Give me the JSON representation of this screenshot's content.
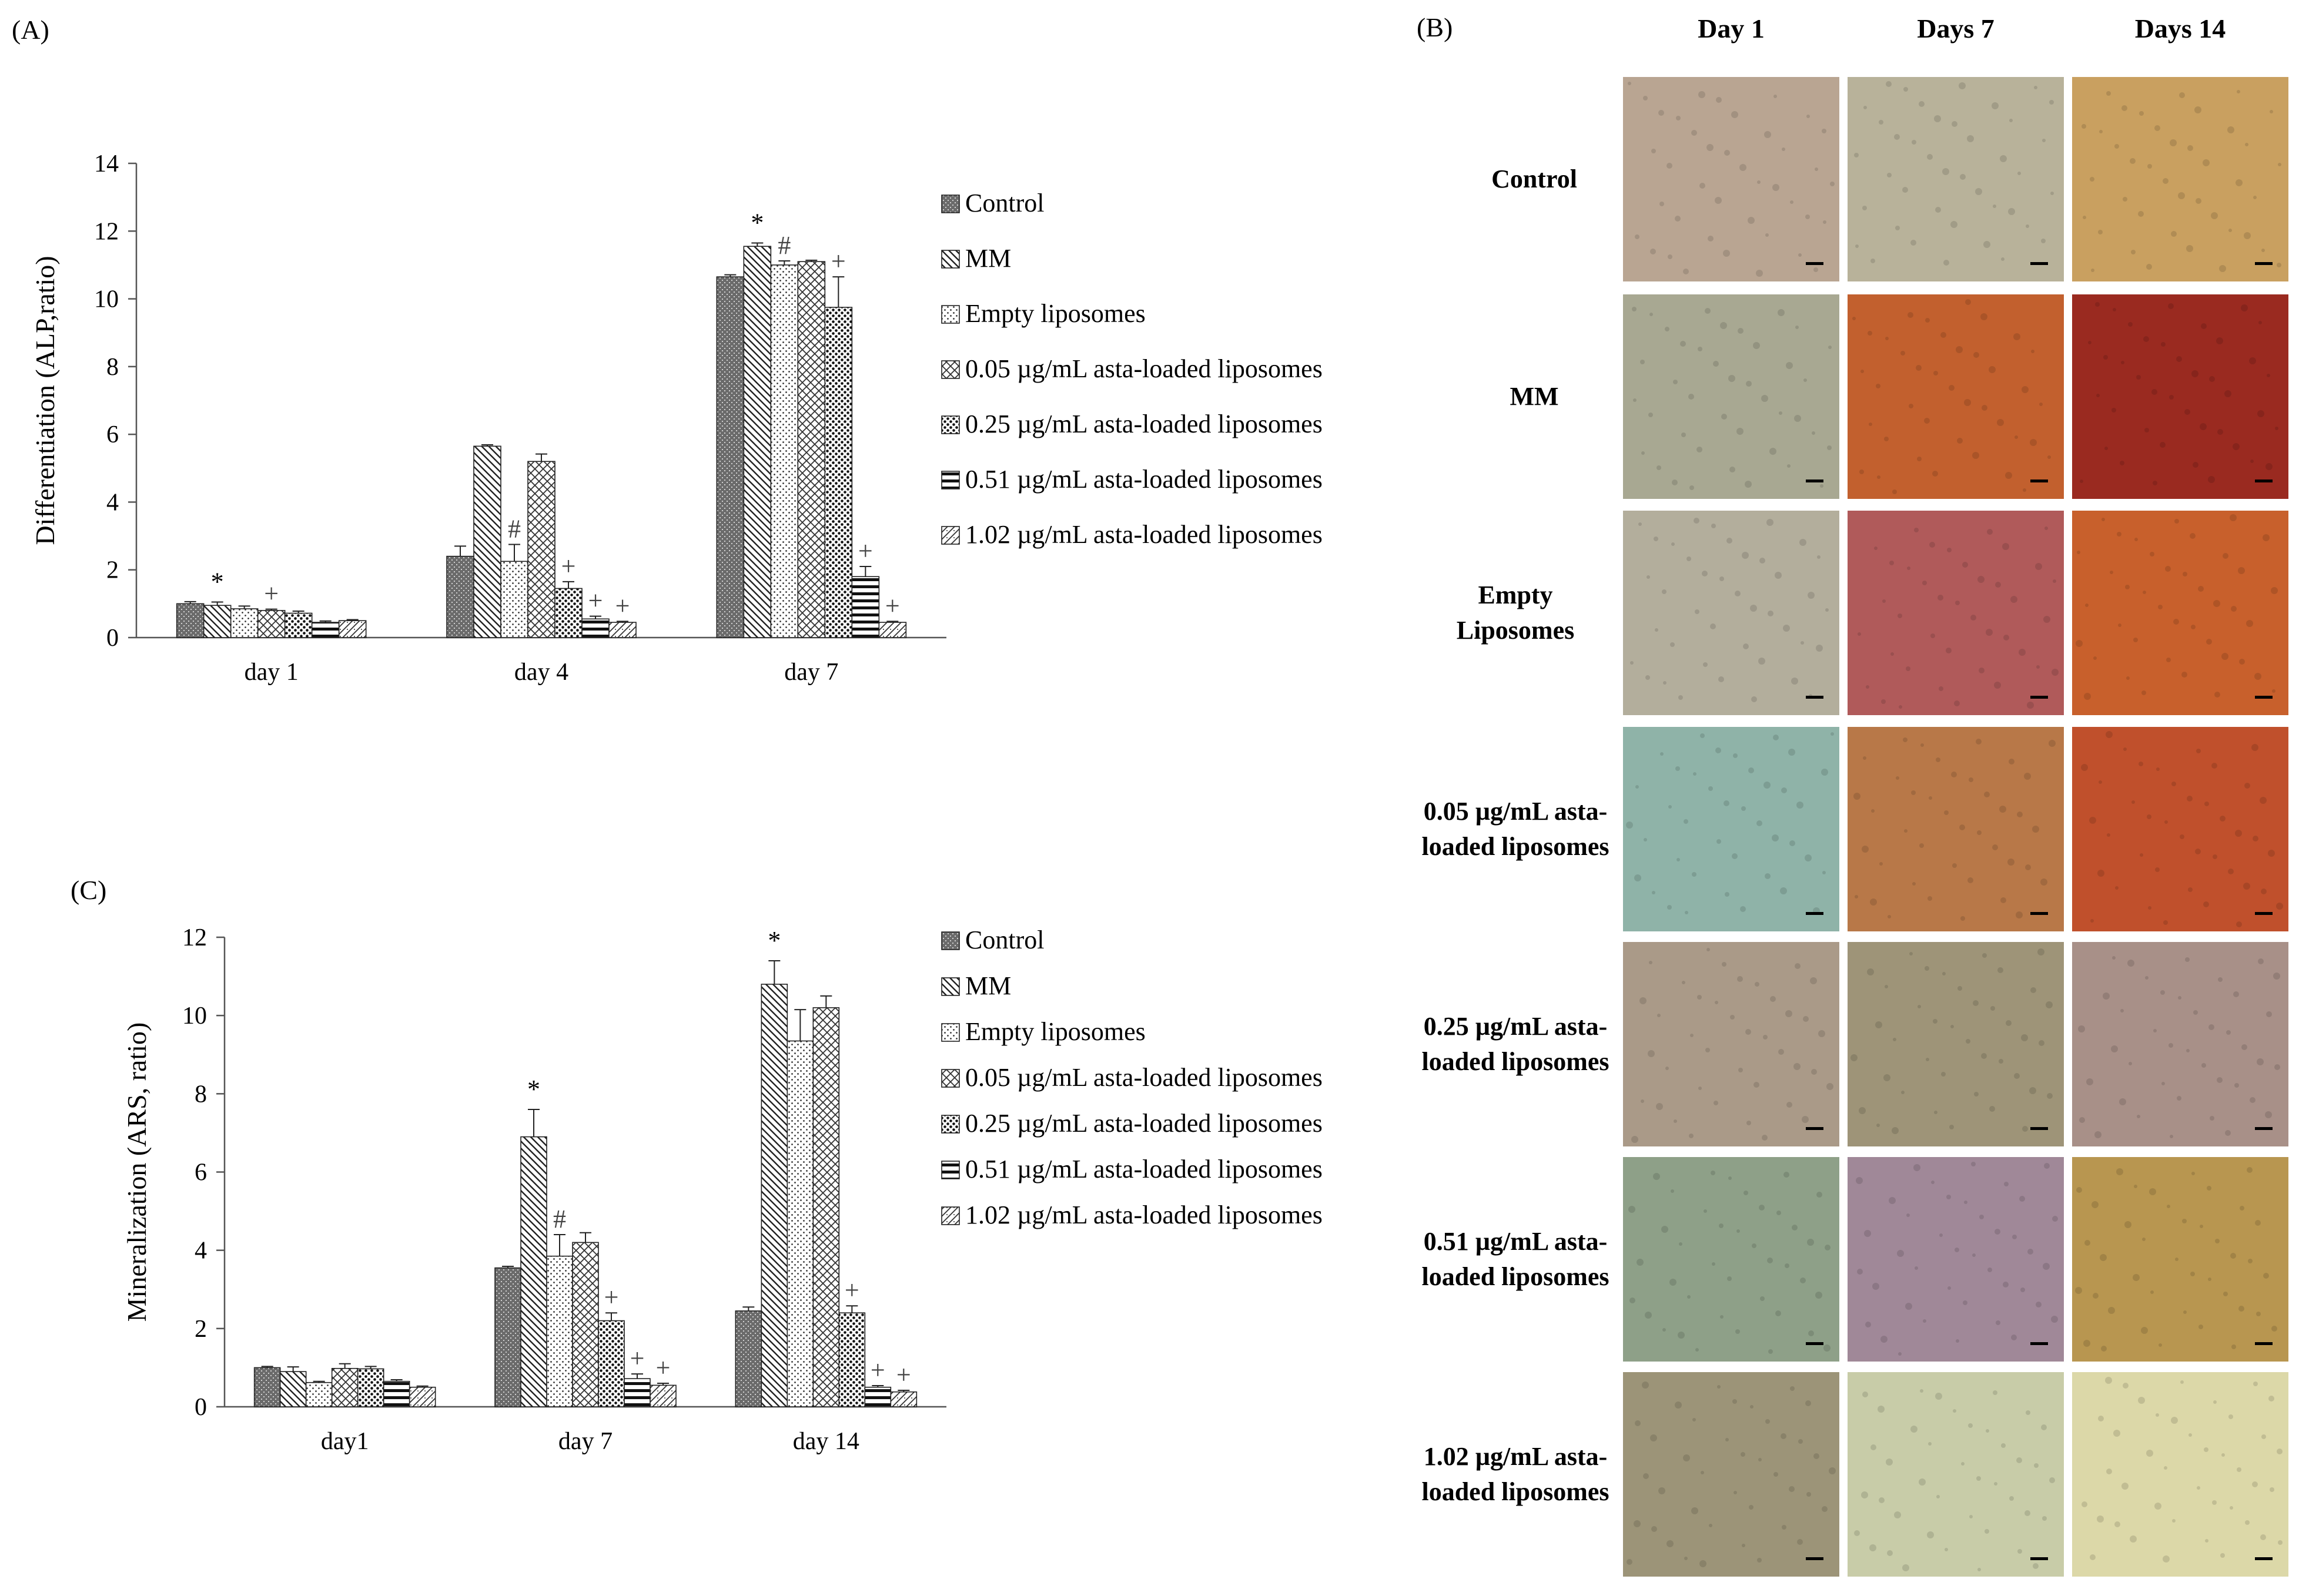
{
  "panels": {
    "A": "(A)",
    "B": "(B)",
    "C": "(C)"
  },
  "legend_labels": [
    "Control",
    "MM",
    "Empty liposomes",
    "0.05 µg/mL asta-loaded liposomes",
    "0.25  µg/mL asta-loaded liposomes",
    "0.51  µg/mL asta-loaded liposomes",
    "1.02  µg/mL asta-loaded liposomes"
  ],
  "legend_labels_c": [
    "Control",
    "MM",
    "Empty liposomes",
    "0.05 µg/mL asta-loaded liposomes",
    "0.25 µg/mL asta-loaded liposomes",
    "0.51 µg/mL asta-loaded liposomes",
    "1.02 µg/mL asta-loaded liposomes"
  ],
  "chart_data": [
    {
      "panel": "A",
      "type": "bar",
      "ylabel": "Differentiation (ALP,ratio)",
      "xlabel": "",
      "ylim": [
        0,
        14
      ],
      "yticks": [
        0,
        2,
        4,
        6,
        8,
        10,
        12,
        14
      ],
      "categories": [
        "day 1",
        "day 4",
        "day 7"
      ],
      "series": [
        {
          "name": "Control",
          "values": [
            1.0,
            2.4,
            10.65
          ],
          "errors": [
            0.06,
            0.3,
            0.06
          ]
        },
        {
          "name": "MM",
          "values": [
            0.95,
            5.65,
            11.55
          ],
          "errors": [
            0.1,
            0.04,
            0.1
          ]
        },
        {
          "name": "Empty liposomes",
          "values": [
            0.85,
            2.25,
            11.0
          ],
          "errors": [
            0.08,
            0.5,
            0.12
          ]
        },
        {
          "name": "0.05 µg/mL asta-loaded liposomes",
          "values": [
            0.8,
            5.2,
            11.1
          ],
          "errors": [
            0.04,
            0.22,
            0.04
          ]
        },
        {
          "name": "0.25  µg/mL asta-loaded liposomes",
          "values": [
            0.72,
            1.45,
            9.75
          ],
          "errors": [
            0.06,
            0.2,
            0.9
          ]
        },
        {
          "name": "0.51  µg/mL asta-loaded liposomes",
          "values": [
            0.45,
            0.55,
            1.8
          ],
          "errors": [
            0.04,
            0.08,
            0.3
          ]
        },
        {
          "name": "1.02  µg/mL asta-loaded liposomes",
          "values": [
            0.5,
            0.45,
            0.45
          ],
          "errors": [
            0.03,
            0.03,
            0.03
          ]
        }
      ],
      "markers": [
        [
          null,
          "*",
          null,
          "+",
          null,
          null,
          null
        ],
        [
          null,
          null,
          "#",
          null,
          "+",
          "+",
          "+"
        ],
        [
          null,
          "*",
          "#",
          null,
          "+",
          "+",
          "+"
        ]
      ],
      "markers_note": "",
      "legend": "right"
    },
    {
      "panel": "C",
      "type": "bar",
      "ylabel": "Mineralization (ARS, ratio)",
      "xlabel": "",
      "ylim": [
        0,
        12
      ],
      "yticks": [
        0,
        2,
        4,
        6,
        8,
        10,
        12
      ],
      "categories": [
        "day1",
        "day 7",
        "day 14"
      ],
      "series": [
        {
          "name": "Control",
          "values": [
            1.0,
            3.55,
            2.45
          ],
          "errors": [
            0.03,
            0.04,
            0.1
          ]
        },
        {
          "name": "MM",
          "values": [
            0.9,
            6.9,
            10.8
          ],
          "errors": [
            0.12,
            0.7,
            0.6
          ]
        },
        {
          "name": "Empty liposomes",
          "values": [
            0.62,
            3.85,
            9.35
          ],
          "errors": [
            0.03,
            0.55,
            0.8
          ]
        },
        {
          "name": "0.05 µg/mL asta-loaded liposomes",
          "values": [
            0.98,
            4.2,
            10.2
          ],
          "errors": [
            0.12,
            0.25,
            0.3
          ]
        },
        {
          "name": "0.25 µg/mL asta-loaded liposomes",
          "values": [
            0.97,
            2.2,
            2.4
          ],
          "errors": [
            0.06,
            0.2,
            0.18
          ]
        },
        {
          "name": "0.51 µg/mL asta-loaded liposomes",
          "values": [
            0.65,
            0.72,
            0.5
          ],
          "errors": [
            0.04,
            0.12,
            0.04
          ]
        },
        {
          "name": "1.02 µg/mL asta-loaded liposomes",
          "values": [
            0.5,
            0.55,
            0.38
          ],
          "errors": [
            0.03,
            0.05,
            0.04
          ]
        }
      ],
      "markers": [
        [
          null,
          null,
          null,
          null,
          null,
          null,
          null
        ],
        [
          null,
          "*",
          "#",
          null,
          "+",
          "+",
          "+"
        ],
        [
          null,
          "*",
          null,
          null,
          "+",
          "+",
          "+"
        ]
      ],
      "legend": "right"
    }
  ],
  "micrograph_grid": {
    "columns": [
      "Day 1",
      "Days 7",
      "Days 14"
    ],
    "rows": [
      {
        "lines": [
          "Control"
        ]
      },
      {
        "lines": [
          "MM"
        ]
      },
      {
        "lines": [
          "Empty",
          "Liposomes"
        ]
      },
      {
        "lines": [
          "0.05 µg/mL asta-",
          "loaded liposomes"
        ]
      },
      {
        "lines": [
          "0.25 µg/mL asta-",
          "loaded liposomes"
        ]
      },
      {
        "lines": [
          "0.51 µg/mL asta-",
          "loaded liposomes"
        ]
      },
      {
        "lines": [
          "1.02 µg/mL asta-",
          "loaded liposomes"
        ]
      }
    ],
    "tile_colors": [
      [
        "#b9a592",
        "#b8b29a",
        "#c9a060"
      ],
      [
        "#a8a892",
        "#c2602e",
        "#9a2a20"
      ],
      [
        "#b3ae9c",
        "#b05a5a",
        "#c8602c"
      ],
      [
        "#8fb3a8",
        "#b87848",
        "#c0502c"
      ],
      [
        "#aa9a88",
        "#9e9478",
        "#a89088"
      ],
      [
        "#8ea088",
        "#a08898",
        "#b89650"
      ],
      [
        "#9c9478",
        "#c8cca8",
        "#dcd8a8"
      ]
    ]
  }
}
